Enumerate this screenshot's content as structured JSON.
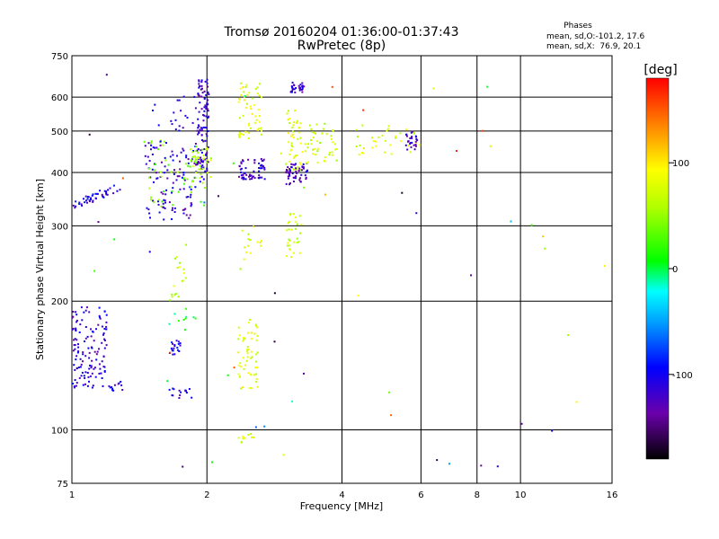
{
  "chart_data": {
    "type": "scatter",
    "title": "Tromsø 20160204 01:36:00-01:37:43",
    "subtitle": "RwPretec (8p)",
    "xlabel": "Frequency [MHz]",
    "ylabel": "Stationary phase Virtual Height [km]",
    "x_scale": "log",
    "y_scale": "log",
    "xlim": [
      1,
      16
    ],
    "ylim": [
      75,
      750
    ],
    "x_ticks": [
      1,
      2,
      4,
      6,
      8,
      10,
      16
    ],
    "x_tick_labels": [
      "1",
      "2",
      "4",
      "6",
      "8",
      "10",
      "16"
    ],
    "y_ticks": [
      75,
      100,
      200,
      300,
      400,
      500,
      600,
      750
    ],
    "y_tick_labels": [
      "75",
      "100",
      "200",
      "300",
      "400",
      "500",
      "600",
      "750"
    ],
    "grid": true,
    "stats": {
      "heading": "Phases",
      "line_o": "mean, sd,O:-101.2, 17.6",
      "line_x": "mean, sd,X:  76.9, 20.1"
    },
    "colorbar": {
      "label": "[deg]",
      "range": [
        -180,
        180
      ],
      "ticks": [
        -100,
        0,
        100
      ],
      "tick_labels": [
        "-100",
        "0",
        "100"
      ]
    },
    "clusters": [
      {
        "f": [
          1.0,
          1.28
        ],
        "h": [
          325,
          380
        ],
        "phase": -110,
        "n": 45,
        "trend": true
      },
      {
        "f": [
          1.45,
          1.9
        ],
        "h": [
          310,
          470
        ],
        "phase": -115,
        "n": 110
      },
      {
        "f": [
          1.45,
          1.98
        ],
        "h": [
          330,
          480
        ],
        "phase": 40,
        "n": 60
      },
      {
        "f": [
          1.5,
          1.9
        ],
        "h": [
          500,
          610
        ],
        "phase": -110,
        "n": 20
      },
      {
        "f": [
          1.9,
          2.02
        ],
        "h": [
          380,
          660
        ],
        "phase": -120,
        "n": 110
      },
      {
        "f": [
          1.85,
          2.05
        ],
        "h": [
          390,
          460
        ],
        "phase": 60,
        "n": 25
      },
      {
        "f": [
          2.35,
          2.65
        ],
        "h": [
          480,
          650
        ],
        "phase": 80,
        "n": 55
      },
      {
        "f": [
          2.35,
          2.7
        ],
        "h": [
          385,
          430
        ],
        "phase": -120,
        "n": 60
      },
      {
        "f": [
          3.0,
          3.3
        ],
        "h": [
          400,
          560
        ],
        "phase": 80,
        "n": 50
      },
      {
        "f": [
          3.0,
          3.35
        ],
        "h": [
          375,
          420
        ],
        "phase": -120,
        "n": 55
      },
      {
        "f": [
          3.05,
          3.3
        ],
        "h": [
          615,
          650
        ],
        "phase": -120,
        "n": 30
      },
      {
        "f": [
          3.3,
          3.9
        ],
        "h": [
          420,
          520
        ],
        "phase": 70,
        "n": 45
      },
      {
        "f": [
          4.2,
          6.0
        ],
        "h": [
          440,
          520
        ],
        "phase": 80,
        "n": 35
      },
      {
        "f": [
          5.5,
          5.9
        ],
        "h": [
          450,
          500
        ],
        "phase": -115,
        "n": 25
      },
      {
        "f": [
          1.0,
          1.2
        ],
        "h": [
          125,
          195
        ],
        "phase": -115,
        "n": 130
      },
      {
        "f": [
          1.2,
          1.3
        ],
        "h": [
          123,
          130
        ],
        "phase": -110,
        "n": 12
      },
      {
        "f": [
          1.65,
          1.75
        ],
        "h": [
          150,
          162
        ],
        "phase": -105,
        "n": 20
      },
      {
        "f": [
          1.65,
          1.85
        ],
        "h": [
          118,
          125
        ],
        "phase": -110,
        "n": 15
      },
      {
        "f": [
          2.35,
          2.6
        ],
        "h": [
          125,
          185
        ],
        "phase": 80,
        "n": 55
      },
      {
        "f": [
          3.0,
          3.25
        ],
        "h": [
          250,
          320
        ],
        "phase": 70,
        "n": 30
      },
      {
        "f": [
          2.4,
          2.65
        ],
        "h": [
          250,
          300
        ],
        "phase": 80,
        "n": 15
      },
      {
        "f": [
          1.65,
          1.8
        ],
        "h": [
          200,
          275
        ],
        "phase": 70,
        "n": 18
      },
      {
        "f": [
          1.6,
          1.9
        ],
        "h": [
          170,
          200
        ],
        "phase": 10,
        "n": 10
      },
      {
        "f": [
          2.35,
          2.55
        ],
        "h": [
          93,
          100
        ],
        "phase": 80,
        "n": 10
      },
      {
        "f": [
          1.0,
          16.0
        ],
        "h": [
          80,
          700
        ],
        "phase": 0,
        "n": 55,
        "random": true
      }
    ]
  }
}
